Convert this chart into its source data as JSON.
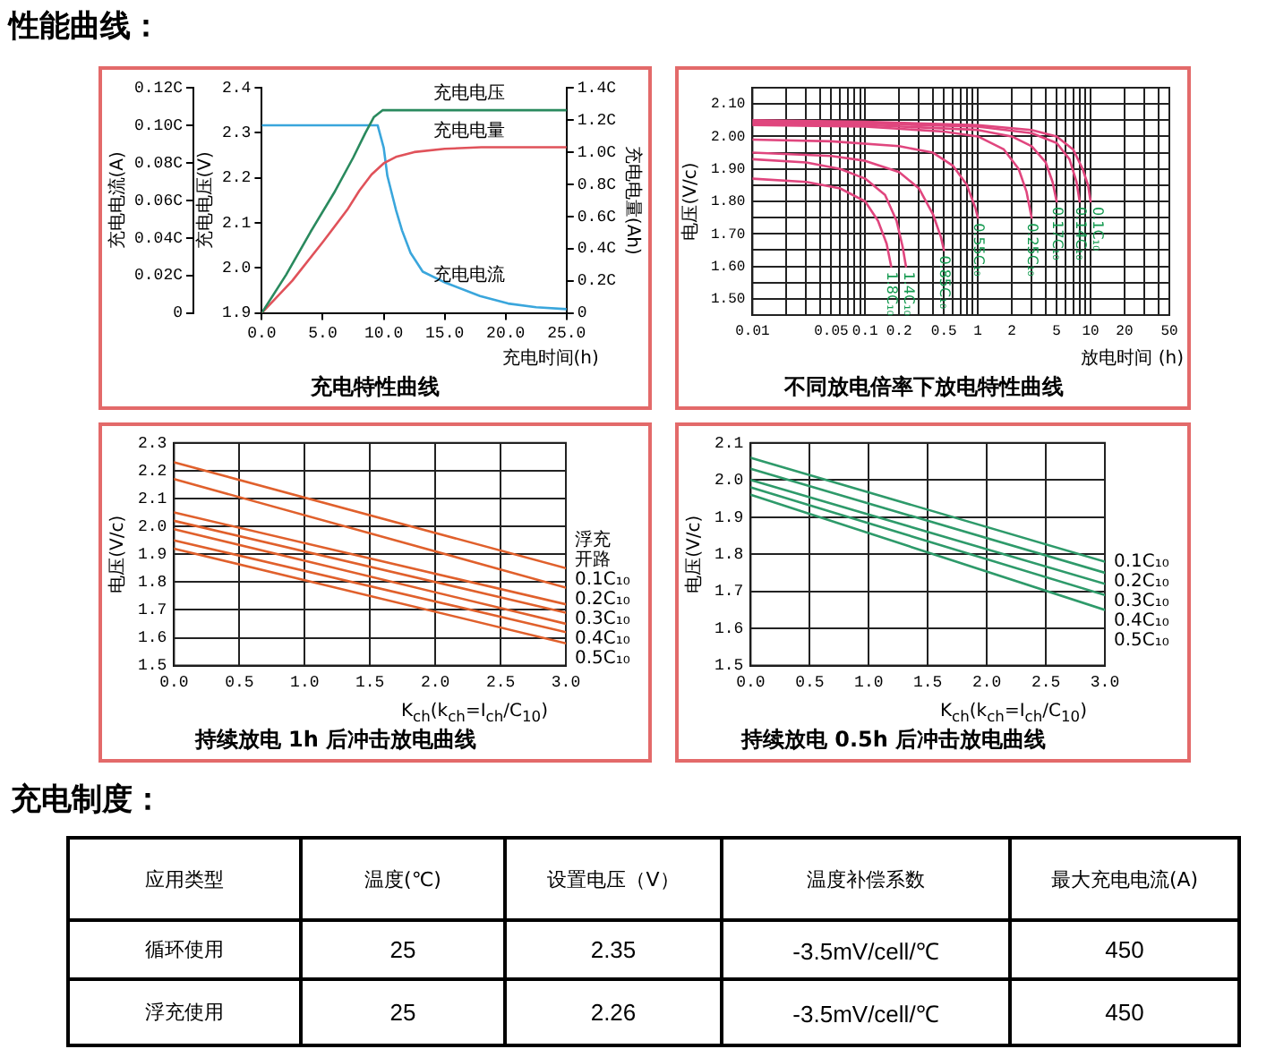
{
  "chart_data": [
    {
      "type": "line",
      "title": "充电特性曲线",
      "annotations": [
        "性能曲线："
      ],
      "xlabel": "充电时间(h)",
      "ylabel": "充电电压(V)",
      "y2label": "充电电量(Ah)",
      "y3label": "充电电流(A)",
      "xlim": [
        0,
        25
      ],
      "xticks": [
        {
          "value": 0,
          "label": "0.0"
        },
        {
          "value": 5,
          "label": "5.0"
        },
        {
          "value": 10,
          "label": "10.0"
        },
        {
          "value": 15,
          "label": "15.0"
        },
        {
          "value": 20,
          "label": "20.0"
        },
        {
          "value": 25,
          "label": "25.0"
        }
      ],
      "ylim": [
        1.9,
        2.4
      ],
      "yticks": [
        1.9,
        {
          "value": 2,
          "label": "2.0"
        },
        2.1,
        2.2,
        2.3,
        2.4
      ],
      "y2lim": [
        0,
        1.4
      ],
      "y2ticks": [
        0,
        {
          "value": 0.2,
          "label": "0.2C"
        },
        {
          "value": 0.4,
          "label": "0.4C"
        },
        {
          "value": 0.6,
          "label": "0.6C"
        },
        {
          "value": 0.8,
          "label": "0.8C"
        },
        {
          "value": 1,
          "label": "1.0C"
        },
        {
          "value": 1.2,
          "label": "1.2C"
        },
        {
          "value": 1.4,
          "label": "1.4C"
        }
      ],
      "y3lim": [
        0,
        0.12
      ],
      "y3ticks": [
        0,
        {
          "value": 0.02,
          "label": "0.02C"
        },
        {
          "value": 0.04,
          "label": "0.04C"
        },
        {
          "value": 0.06,
          "label": "0.06C"
        },
        {
          "value": 0.08,
          "label": "0.08C"
        },
        {
          "value": 0.1,
          "label": "0.10C"
        },
        {
          "value": 0.12,
          "label": "0.12C"
        }
      ],
      "series": [
        {
          "name": "充电电压",
          "color": "#2a8a5e",
          "x": [
            0,
            2,
            4,
            6,
            7.5,
            8.5,
            9.2,
            9.9,
            25
          ],
          "values": [
            1.9,
            1.985,
            2.08,
            2.17,
            2.245,
            2.3,
            2.335,
            2.35,
            2.35
          ]
        },
        {
          "name": "充电电量",
          "color": "#e0525a",
          "axis": "y2",
          "x": [
            0,
            2.5,
            5,
            7,
            8,
            9,
            10,
            11,
            12.5,
            15,
            18,
            25
          ],
          "values": [
            0,
            0.2,
            0.44,
            0.64,
            0.76,
            0.86,
            0.93,
            0.97,
            1.0,
            1.02,
            1.03,
            1.03
          ]
        },
        {
          "name": "充电电流",
          "color": "#3aa6dc",
          "axis": "y3",
          "x": [
            0,
            9.5,
            10,
            10.3,
            11,
            11.5,
            12.2,
            13.2,
            15.1,
            17.9,
            20.2,
            22.5,
            25
          ],
          "values": [
            0.1,
            0.1,
            0.088,
            0.073,
            0.055,
            0.044,
            0.032,
            0.022,
            0.016,
            0.009,
            0.005,
            0.003,
            0.002
          ]
        }
      ]
    },
    {
      "type": "line",
      "title": "不同放电倍率下放电特性曲线",
      "xlabel": "放电时间 (h)",
      "ylabel": "电压(V/c)",
      "log": "x",
      "grid": true,
      "xlim": [
        0.01,
        50
      ],
      "xticks": [
        0.01,
        {
          "value": 0.02,
          "label": null
        },
        {
          "value": 0.03,
          "label": null
        },
        {
          "value": 0.04,
          "label": null
        },
        0.05,
        {
          "value": 0.06,
          "label": null
        },
        {
          "value": 0.07,
          "label": null
        },
        {
          "value": 0.08,
          "label": null
        },
        {
          "value": 0.09,
          "label": null
        },
        0.1,
        0.2,
        {
          "value": 0.3,
          "label": null
        },
        {
          "value": 0.4,
          "label": null
        },
        0.5,
        {
          "value": 0.6,
          "label": null
        },
        {
          "value": 0.7,
          "label": null
        },
        {
          "value": 0.8,
          "label": null
        },
        {
          "value": 0.9,
          "label": null
        },
        1,
        2,
        {
          "value": 3,
          "label": null
        },
        {
          "value": 4,
          "label": null
        },
        5,
        {
          "value": 6,
          "label": null
        },
        {
          "value": 7,
          "label": null
        },
        {
          "value": 8,
          "label": null
        },
        {
          "value": 9,
          "label": null
        },
        10,
        20,
        {
          "value": 30,
          "label": null
        },
        {
          "value": 40,
          "label": null
        },
        50
      ],
      "ylim": [
        1.45,
        2.15
      ],
      "yticks": [
        {
          "value": 1.5,
          "label": "1.50"
        },
        {
          "value": 1.55,
          "label": null
        },
        {
          "value": 1.6,
          "label": "1.60"
        },
        {
          "value": 1.65,
          "label": null
        },
        {
          "value": 1.7,
          "label": "1.70"
        },
        {
          "value": 1.75,
          "label": null
        },
        {
          "value": 1.8,
          "label": "1.80"
        },
        {
          "value": 1.85,
          "label": null
        },
        {
          "value": 1.9,
          "label": "1.90"
        },
        {
          "value": 1.95,
          "label": null
        },
        {
          "value": 2,
          "label": "2.00"
        },
        {
          "value": 2.05,
          "label": null
        },
        {
          "value": 2.1,
          "label": "2.10"
        }
      ],
      "series": [
        {
          "name": "0.1C₁₀",
          "color": "#e0467e",
          "x": [
            0.01,
            0.1,
            1,
            3,
            5,
            7,
            8.5,
            9.5,
            10
          ],
          "values": [
            2.05,
            2.045,
            2.035,
            2.02,
            2.0,
            1.96,
            1.9,
            1.85,
            1.8
          ]
        },
        {
          "name": "0.14C₁₀",
          "color": "#e0467e",
          "x": [
            0.01,
            0.1,
            1,
            3,
            5,
            6.5,
            7.5,
            8
          ],
          "values": [
            2.045,
            2.04,
            2.03,
            2.01,
            1.98,
            1.93,
            1.86,
            1.8
          ]
        },
        {
          "name": "0.17C₁₀",
          "color": "#e0467e",
          "x": [
            0.01,
            0.1,
            1,
            2,
            3,
            4,
            4.6,
            5
          ],
          "values": [
            2.04,
            2.035,
            2.02,
            2.0,
            1.97,
            1.92,
            1.86,
            1.8
          ]
        },
        {
          "name": "0.25C₁₀",
          "color": "#e0467e",
          "x": [
            0.01,
            0.1,
            0.5,
            1,
            1.7,
            2.3,
            2.7,
            3
          ],
          "values": [
            2.035,
            2.03,
            2.015,
            2.0,
            1.96,
            1.9,
            1.83,
            1.75
          ]
        },
        {
          "name": "0.55C₁₀",
          "color": "#e0467e",
          "x": [
            0.01,
            0.05,
            0.2,
            0.4,
            0.6,
            0.8,
            0.95,
            1
          ],
          "values": [
            1.99,
            1.985,
            1.97,
            1.95,
            1.91,
            1.85,
            1.78,
            1.75
          ]
        },
        {
          "name": "0.85C₁₀",
          "color": "#e0467e",
          "x": [
            0.01,
            0.05,
            0.1,
            0.2,
            0.3,
            0.4,
            0.47,
            0.5
          ],
          "values": [
            1.95,
            1.94,
            1.925,
            1.89,
            1.84,
            1.76,
            1.69,
            1.65
          ]
        },
        {
          "name": "1.4C₁₀",
          "color": "#e0467e",
          "x": [
            0.01,
            0.03,
            0.06,
            0.1,
            0.15,
            0.19,
            0.215,
            0.23
          ],
          "values": [
            1.93,
            1.92,
            1.9,
            1.87,
            1.82,
            1.74,
            1.66,
            1.6
          ]
        },
        {
          "name": "1.8C₁₀",
          "color": "#e0467e",
          "x": [
            0.01,
            0.03,
            0.06,
            0.1,
            0.13,
            0.155,
            0.17
          ],
          "values": [
            1.87,
            1.86,
            1.84,
            1.8,
            1.74,
            1.67,
            1.6
          ]
        }
      ]
    },
    {
      "type": "line",
      "title": "持续放电 1h 后冲击放电曲线",
      "xlabel": "K$_{ch}$(k$_{ch}$=I$_{ch}$/C$_{10}$)",
      "ylabel": "电压(V/c)",
      "grid": true,
      "xlim": [
        0,
        3
      ],
      "xticks": [
        {
          "value": 0,
          "label": "0.0"
        },
        0.5,
        {
          "value": 1,
          "label": "1.0"
        },
        1.5,
        {
          "value": 2,
          "label": "2.0"
        },
        2.5,
        {
          "value": 3,
          "label": "3.0"
        }
      ],
      "ylim": [
        1.5,
        2.3
      ],
      "yticks": [
        1.5,
        1.6,
        1.7,
        1.8,
        1.9,
        {
          "value": 2,
          "label": "2.0"
        },
        2.1,
        2.2,
        2.3
      ],
      "series": [
        {
          "name": "浮充",
          "color": "#e0602c",
          "x": [
            0,
            3
          ],
          "values": [
            2.23,
            1.85
          ]
        },
        {
          "name": "开路",
          "color": "#e0602c",
          "x": [
            0,
            3
          ],
          "values": [
            2.17,
            1.78
          ]
        },
        {
          "name": "0.1C₁₀",
          "color": "#e0602c",
          "x": [
            0,
            3
          ],
          "values": [
            2.05,
            1.72
          ]
        },
        {
          "name": "0.2C₁₀",
          "color": "#e0602c",
          "x": [
            0,
            3
          ],
          "values": [
            2.02,
            1.69
          ]
        },
        {
          "name": "0.3C₁₀",
          "color": "#e0602c",
          "x": [
            0,
            3
          ],
          "values": [
            1.99,
            1.65
          ]
        },
        {
          "name": "0.4C₁₀",
          "color": "#e0602c",
          "x": [
            0,
            3
          ],
          "values": [
            1.95,
            1.62
          ]
        },
        {
          "name": "0.5C₁₀",
          "color": "#e0602c",
          "x": [
            0,
            3
          ],
          "values": [
            1.92,
            1.58
          ]
        }
      ]
    },
    {
      "type": "line",
      "title": "持续放电 0.5h 后冲击放电曲线",
      "xlabel": "K$_{ch}$(k$_{ch}$=I$_{ch}$/C$_{10}$)",
      "ylabel": "电压(V/c)",
      "grid": true,
      "xlim": [
        0,
        3
      ],
      "xticks": [
        {
          "value": 0,
          "label": "0.0"
        },
        0.5,
        {
          "value": 1,
          "label": "1.0"
        },
        1.5,
        {
          "value": 2,
          "label": "2.0"
        },
        2.5,
        {
          "value": 3,
          "label": "3.0"
        }
      ],
      "ylim": [
        1.5,
        2.1
      ],
      "yticks": [
        1.5,
        1.6,
        1.7,
        1.8,
        1.9,
        {
          "value": 2,
          "label": "2.0"
        },
        2.1
      ],
      "series": [
        {
          "name": "0.1C₁₀",
          "color": "#2e9a6a",
          "x": [
            0,
            3
          ],
          "values": [
            2.06,
            1.78
          ]
        },
        {
          "name": "0.2C₁₀",
          "color": "#2e9a6a",
          "x": [
            0,
            3
          ],
          "values": [
            2.03,
            1.75
          ]
        },
        {
          "name": "0.3C₁₀",
          "color": "#2e9a6a",
          "x": [
            0,
            3
          ],
          "values": [
            2.0,
            1.72
          ]
        },
        {
          "name": "0.4C₁₀",
          "color": "#2e9a6a",
          "x": [
            0,
            3
          ],
          "values": [
            1.98,
            1.69
          ]
        },
        {
          "name": "0.5C₁₀",
          "color": "#2e9a6a",
          "x": [
            0,
            3
          ],
          "values": [
            1.96,
            1.65
          ]
        }
      ]
    },
    {
      "type": "other",
      "title": "充电制度：",
      "ylabel": "应用类型",
      "categories": [
        "温度(℃)",
        "设置电压（V）",
        "温度补偿系数",
        "最大充电电流(A)"
      ],
      "y_categories": [
        "循环使用",
        "浮充使用"
      ],
      "cell_labels": [
        [
          "25",
          "2.35",
          "-3.5mV/cell/℃",
          "450"
        ],
        [
          "25",
          "2.26",
          "-3.5mV/cell/℃",
          "450"
        ]
      ]
    }
  ]
}
